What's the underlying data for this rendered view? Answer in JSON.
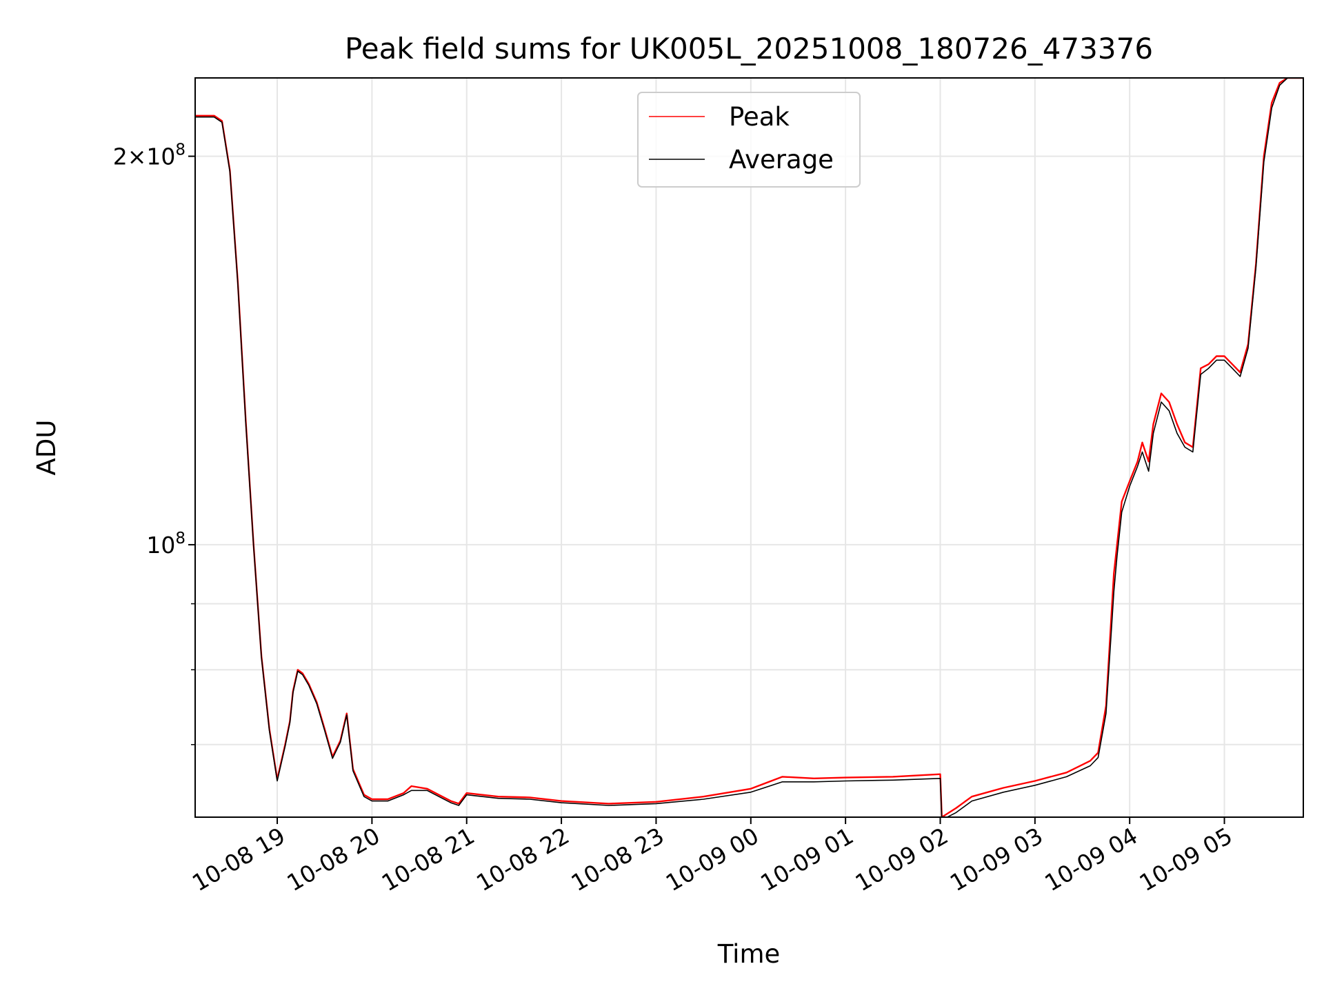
{
  "chart_data": {
    "type": "line",
    "title": "Peak field sums for UK005L_20251008_180726_473376",
    "xlabel": "Time",
    "ylabel": "ADU",
    "yscale": "log",
    "grid": true,
    "legend_position": "top-center",
    "xlim": [
      "2025-10-08 18:08",
      "2025-10-09 05:50"
    ],
    "ylim": [
      61500000,
      230000000
    ],
    "x_ticks": [
      {
        "value": "2025-10-08 19:00",
        "label": "10-08 19"
      },
      {
        "value": "2025-10-08 20:00",
        "label": "10-08 20"
      },
      {
        "value": "2025-10-08 21:00",
        "label": "10-08 21"
      },
      {
        "value": "2025-10-08 22:00",
        "label": "10-08 22"
      },
      {
        "value": "2025-10-08 23:00",
        "label": "10-08 23"
      },
      {
        "value": "2025-10-09 00:00",
        "label": "10-09 00"
      },
      {
        "value": "2025-10-09 01:00",
        "label": "10-09 01"
      },
      {
        "value": "2025-10-09 02:00",
        "label": "10-09 02"
      },
      {
        "value": "2025-10-09 03:00",
        "label": "10-09 03"
      },
      {
        "value": "2025-10-09 04:00",
        "label": "10-09 04"
      },
      {
        "value": "2025-10-09 05:00",
        "label": "10-09 05"
      }
    ],
    "y_major_ticks": [
      {
        "value": 100000000,
        "label": "10",
        "exponent": "8"
      },
      {
        "value": 200000000,
        "label": "2×10",
        "exponent": "8"
      }
    ],
    "y_minor_ticks": [
      70000000,
      80000000,
      90000000
    ],
    "series": [
      {
        "name": "Peak",
        "color": "#ff0000",
        "x": [
          "2025-10-08 18:08",
          "2025-10-08 18:20",
          "2025-10-08 18:25",
          "2025-10-08 18:30",
          "2025-10-08 18:35",
          "2025-10-08 18:40",
          "2025-10-08 18:45",
          "2025-10-08 18:50",
          "2025-10-08 18:55",
          "2025-10-08 19:00",
          "2025-10-08 19:05",
          "2025-10-08 19:08",
          "2025-10-08 19:10",
          "2025-10-08 19:13",
          "2025-10-08 19:16",
          "2025-10-08 19:20",
          "2025-10-08 19:25",
          "2025-10-08 19:30",
          "2025-10-08 19:35",
          "2025-10-08 19:40",
          "2025-10-08 19:44",
          "2025-10-08 19:48",
          "2025-10-08 19:55",
          "2025-10-08 20:00",
          "2025-10-08 20:10",
          "2025-10-08 20:20",
          "2025-10-08 20:25",
          "2025-10-08 20:35",
          "2025-10-08 20:50",
          "2025-10-08 20:55",
          "2025-10-08 21:00",
          "2025-10-08 21:20",
          "2025-10-08 21:40",
          "2025-10-08 22:00",
          "2025-10-08 22:30",
          "2025-10-08 23:00",
          "2025-10-08 23:30",
          "2025-10-09 00:00",
          "2025-10-09 00:20",
          "2025-10-09 00:40",
          "2025-10-09 01:00",
          "2025-10-09 01:30",
          "2025-10-09 02:00",
          "2025-10-09 02:01",
          "2025-10-09 02:10",
          "2025-10-09 02:20",
          "2025-10-09 02:40",
          "2025-10-09 03:00",
          "2025-10-09 03:20",
          "2025-10-09 03:35",
          "2025-10-09 03:40",
          "2025-10-09 03:45",
          "2025-10-09 03:50",
          "2025-10-09 03:52",
          "2025-10-09 03:55",
          "2025-10-09 04:00",
          "2025-10-09 04:05",
          "2025-10-09 04:08",
          "2025-10-09 04:12",
          "2025-10-09 04:15",
          "2025-10-09 04:20",
          "2025-10-09 04:25",
          "2025-10-09 04:30",
          "2025-10-09 04:35",
          "2025-10-09 04:40",
          "2025-10-09 04:45",
          "2025-10-09 04:50",
          "2025-10-09 04:55",
          "2025-10-09 05:00",
          "2025-10-09 05:05",
          "2025-10-09 05:10",
          "2025-10-09 05:15",
          "2025-10-09 05:20",
          "2025-10-09 05:25",
          "2025-10-09 05:30",
          "2025-10-09 05:35",
          "2025-10-09 05:40",
          "2025-10-09 05:45",
          "2025-10-09 05:50"
        ],
        "values": [
          215000000,
          215000000,
          213000000,
          195000000,
          160000000,
          125000000,
          100000000,
          82000000,
          72000000,
          65800000,
          70000000,
          73000000,
          77000000,
          80000000,
          79500000,
          78000000,
          75500000,
          72000000,
          68500000,
          70500000,
          74000000,
          67000000,
          64000000,
          63500000,
          63500000,
          64200000,
          65000000,
          64700000,
          63300000,
          63000000,
          64200000,
          63800000,
          63700000,
          63300000,
          63000000,
          63200000,
          63800000,
          64700000,
          66100000,
          65900000,
          66000000,
          66100000,
          66400000,
          61500000,
          62500000,
          63800000,
          64800000,
          65600000,
          66600000,
          68000000,
          69000000,
          75000000,
          95000000,
          100000000,
          108000000,
          112000000,
          116000000,
          120000000,
          116000000,
          124000000,
          131000000,
          129000000,
          124000000,
          120000000,
          119000000,
          137000000,
          138000000,
          140000000,
          140000000,
          138000000,
          136000000,
          143000000,
          165000000,
          200000000,
          220000000,
          228000000,
          230000000,
          230000000,
          230000000
        ]
      },
      {
        "name": "Average",
        "color": "#000000",
        "x": [
          "2025-10-08 18:08",
          "2025-10-08 18:20",
          "2025-10-08 18:25",
          "2025-10-08 18:30",
          "2025-10-08 18:35",
          "2025-10-08 18:40",
          "2025-10-08 18:45",
          "2025-10-08 18:50",
          "2025-10-08 18:55",
          "2025-10-08 19:00",
          "2025-10-08 19:05",
          "2025-10-08 19:08",
          "2025-10-08 19:10",
          "2025-10-08 19:13",
          "2025-10-08 19:16",
          "2025-10-08 19:20",
          "2025-10-08 19:25",
          "2025-10-08 19:30",
          "2025-10-08 19:35",
          "2025-10-08 19:40",
          "2025-10-08 19:44",
          "2025-10-08 19:48",
          "2025-10-08 19:55",
          "2025-10-08 20:00",
          "2025-10-08 20:10",
          "2025-10-08 20:20",
          "2025-10-08 20:25",
          "2025-10-08 20:35",
          "2025-10-08 20:50",
          "2025-10-08 20:55",
          "2025-10-08 21:00",
          "2025-10-08 21:20",
          "2025-10-08 21:40",
          "2025-10-08 22:00",
          "2025-10-08 22:30",
          "2025-10-08 23:00",
          "2025-10-08 23:30",
          "2025-10-09 00:00",
          "2025-10-09 00:20",
          "2025-10-09 00:40",
          "2025-10-09 01:00",
          "2025-10-09 01:30",
          "2025-10-09 02:00",
          "2025-10-09 02:01",
          "2025-10-09 02:10",
          "2025-10-09 02:20",
          "2025-10-09 02:40",
          "2025-10-09 03:00",
          "2025-10-09 03:20",
          "2025-10-09 03:35",
          "2025-10-09 03:40",
          "2025-10-09 03:45",
          "2025-10-09 03:50",
          "2025-10-09 03:52",
          "2025-10-09 03:55",
          "2025-10-09 04:00",
          "2025-10-09 04:05",
          "2025-10-09 04:08",
          "2025-10-09 04:12",
          "2025-10-09 04:15",
          "2025-10-09 04:20",
          "2025-10-09 04:25",
          "2025-10-09 04:30",
          "2025-10-09 04:35",
          "2025-10-09 04:40",
          "2025-10-09 04:45",
          "2025-10-09 04:50",
          "2025-10-09 04:55",
          "2025-10-09 05:00",
          "2025-10-09 05:05",
          "2025-10-09 05:10",
          "2025-10-09 05:15",
          "2025-10-09 05:20",
          "2025-10-09 05:25",
          "2025-10-09 05:30",
          "2025-10-09 05:35",
          "2025-10-09 05:40",
          "2025-10-09 05:45",
          "2025-10-09 05:50"
        ],
        "values": [
          214500000,
          214500000,
          212500000,
          194500000,
          159500000,
          124500000,
          99800000,
          81800000,
          71800000,
          65600000,
          69800000,
          72800000,
          76800000,
          79800000,
          79300000,
          77800000,
          75300000,
          71800000,
          68300000,
          70300000,
          73800000,
          66800000,
          63800000,
          63300000,
          63300000,
          64000000,
          64500000,
          64500000,
          63100000,
          62800000,
          64000000,
          63600000,
          63500000,
          63100000,
          62800000,
          63000000,
          63500000,
          64300000,
          65500000,
          65500000,
          65600000,
          65700000,
          65900000,
          61200000,
          62000000,
          63300000,
          64300000,
          65100000,
          66100000,
          67400000,
          68400000,
          74000000,
          92000000,
          98000000,
          106000000,
          111000000,
          115000000,
          118000000,
          114000000,
          122000000,
          129000000,
          127000000,
          122000000,
          119000000,
          118000000,
          135500000,
          137000000,
          139000000,
          139000000,
          137000000,
          135000000,
          142000000,
          164000000,
          198000000,
          218000000,
          227000000,
          230000000,
          230000000,
          230000000
        ]
      }
    ]
  }
}
